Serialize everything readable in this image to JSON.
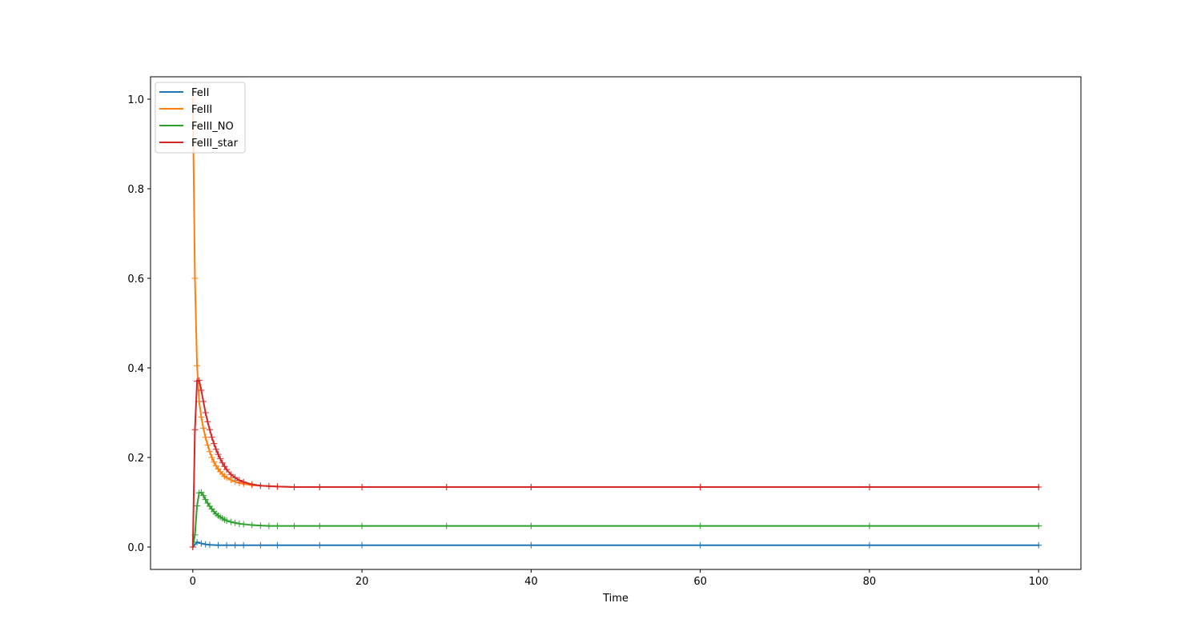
{
  "chart_data": {
    "type": "line",
    "title": "",
    "xlabel": "Time",
    "ylabel": "",
    "xlim": [
      -5,
      105
    ],
    "ylim": [
      -0.05,
      1.05
    ],
    "xticks": [
      0,
      20,
      40,
      60,
      80,
      100
    ],
    "xtick_labels": [
      "0",
      "20",
      "40",
      "60",
      "80",
      "100"
    ],
    "yticks": [
      0.0,
      0.2,
      0.4,
      0.6,
      0.8,
      1.0
    ],
    "ytick_labels": [
      "0.0",
      "0.2",
      "0.4",
      "0.6",
      "0.8",
      "1.0"
    ],
    "grid": false,
    "legend_position": "upper left",
    "marker": "+",
    "series": [
      {
        "name": "FeII",
        "color": "#1f77b4",
        "x": [
          0,
          0.5,
          1,
          1.5,
          2,
          3,
          4,
          5,
          6,
          8,
          10,
          15,
          20,
          40,
          60,
          80,
          100
        ],
        "y": [
          0.0,
          0.011,
          0.008,
          0.006,
          0.005,
          0.004,
          0.004,
          0.004,
          0.004,
          0.004,
          0.004,
          0.004,
          0.004,
          0.004,
          0.004,
          0.004,
          0.004
        ]
      },
      {
        "name": "FeIII",
        "color": "#ff7f0e",
        "x": [
          0,
          0.25,
          0.5,
          0.75,
          1,
          1.25,
          1.5,
          1.75,
          2,
          2.25,
          2.5,
          2.75,
          3,
          3.25,
          3.5,
          3.75,
          4,
          4.5,
          5,
          5.5,
          6,
          7,
          8,
          9,
          10,
          12,
          15,
          20,
          30,
          40,
          60,
          80,
          100
        ],
        "y": [
          1.0,
          0.6,
          0.405,
          0.325,
          0.29,
          0.265,
          0.245,
          0.228,
          0.213,
          0.2,
          0.19,
          0.181,
          0.174,
          0.168,
          0.163,
          0.158,
          0.155,
          0.15,
          0.146,
          0.143,
          0.141,
          0.138,
          0.137,
          0.136,
          0.135,
          0.134,
          0.134,
          0.134,
          0.134,
          0.134,
          0.134,
          0.134,
          0.134
        ]
      },
      {
        "name": "FeIII_NO",
        "color": "#2ca02c",
        "x": [
          0,
          0.25,
          0.5,
          0.75,
          1,
          1.25,
          1.5,
          1.75,
          2,
          2.25,
          2.5,
          2.75,
          3,
          3.25,
          3.5,
          3.75,
          4,
          4.5,
          5,
          5.5,
          6,
          7,
          8,
          9,
          10,
          12,
          15,
          20,
          30,
          40,
          60,
          80,
          100
        ],
        "y": [
          0.0,
          0.027,
          0.092,
          0.121,
          0.122,
          0.115,
          0.106,
          0.098,
          0.091,
          0.085,
          0.079,
          0.074,
          0.07,
          0.067,
          0.064,
          0.061,
          0.059,
          0.056,
          0.054,
          0.052,
          0.051,
          0.049,
          0.048,
          0.047,
          0.047,
          0.047,
          0.047,
          0.047,
          0.047,
          0.047,
          0.047,
          0.047,
          0.047
        ]
      },
      {
        "name": "FeIII_star",
        "color": "#d62728",
        "x": [
          0,
          0.25,
          0.5,
          0.75,
          1,
          1.25,
          1.5,
          1.75,
          2,
          2.25,
          2.5,
          2.75,
          3,
          3.25,
          3.5,
          3.75,
          4,
          4.5,
          5,
          5.5,
          6,
          7,
          8,
          9,
          10,
          12,
          15,
          20,
          30,
          40,
          60,
          80,
          100
        ],
        "y": [
          0.0,
          0.262,
          0.37,
          0.372,
          0.35,
          0.325,
          0.3,
          0.28,
          0.262,
          0.245,
          0.231,
          0.218,
          0.207,
          0.197,
          0.188,
          0.18,
          0.173,
          0.162,
          0.155,
          0.149,
          0.145,
          0.14,
          0.137,
          0.136,
          0.135,
          0.134,
          0.134,
          0.134,
          0.134,
          0.134,
          0.134,
          0.134,
          0.134
        ]
      }
    ]
  }
}
